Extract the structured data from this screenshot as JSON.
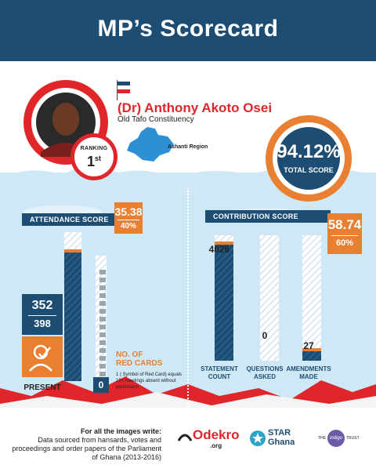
{
  "header": {
    "title": "MP’s Scorecard"
  },
  "mp": {
    "name": "(Dr) Anthony Akoto Osei",
    "constituency": "Old Tafo Constituency",
    "region": "Ashanti Region",
    "ranking_label": "RANKING",
    "ranking_value": "1",
    "ranking_suffix": "st"
  },
  "total": {
    "value": "94.12%",
    "label": "TOTAL SCORE"
  },
  "attendance": {
    "label": "ATTENDANCE SCORE",
    "score": "35.38",
    "weight": "40%",
    "present": "352",
    "total": "398",
    "present_label": "PRESENT",
    "present_fraction": 0.884,
    "red_cards_value": "0",
    "red_cards_label": "NO. OF\nRED CARDS",
    "red_cards_note": "1 ( Symbol of Red Card) equals 15+ meetings absent without permission"
  },
  "contribution": {
    "label": "CONTRIBUTION SCORE",
    "score": "58.74",
    "weight": "60%",
    "bars": [
      {
        "label": "STATEMENT\nCOUNT",
        "value": "4026",
        "fraction": 0.95
      },
      {
        "label": "QUESTIONS\nASKED",
        "value": "0",
        "fraction": 0.0
      },
      {
        "label": "AMENDMENTS\nMADE",
        "value": "27",
        "fraction": 0.1
      }
    ]
  },
  "footer": {
    "heading": "For all the images write:",
    "text": "Data sourced from hansards, votes and proceedings and order papers of the Parliament of Ghana (2013-2016)",
    "logos": [
      "Odekro",
      ".org",
      "STAR",
      "Ghana",
      "THE",
      "indigo",
      "TRUST"
    ]
  },
  "colors": {
    "navy": "#1e4d73",
    "orange": "#e97f30",
    "red": "#e0262b",
    "sky": "#cfe8f6"
  }
}
